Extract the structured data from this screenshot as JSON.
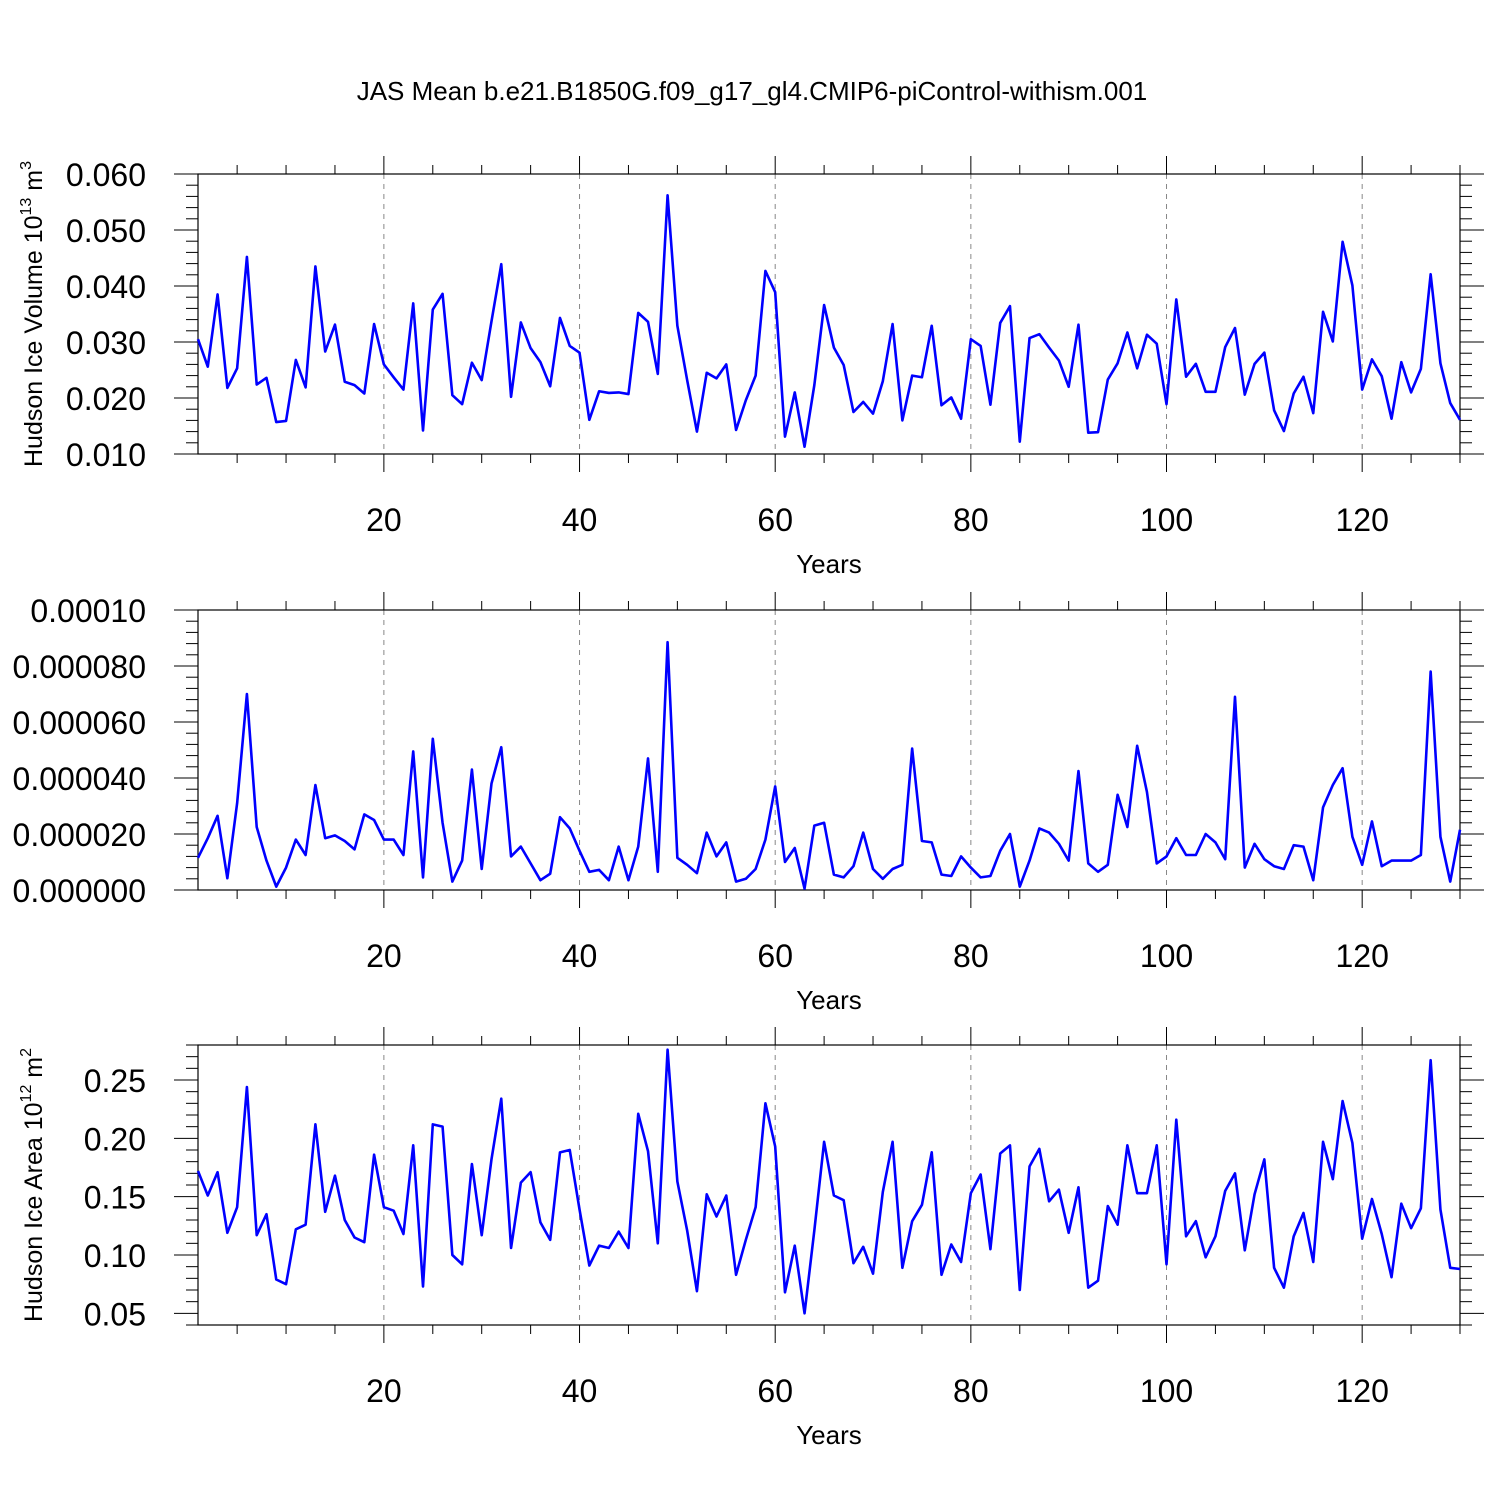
{
  "title": "JAS Mean b.e21.B1850G.f09_g17_gl4.CMIP6-piControl-withism.001",
  "colors": {
    "line": "#0000ff",
    "axis": "#000000",
    "grid": "#888888"
  },
  "chart_data": [
    {
      "type": "line",
      "ylabel": {
        "text": "Hudson Ice Volume 10",
        "exp": "13",
        "unit": " m",
        "unit_exp": "3"
      },
      "xlabel": "Years",
      "xlim": [
        1,
        130
      ],
      "ylim": [
        0.01,
        0.06
      ],
      "xticks": [
        "20",
        "40",
        "60",
        "80",
        "100",
        "120"
      ],
      "yticks": [
        "0.010",
        "0.020",
        "0.030",
        "0.040",
        "0.050",
        "0.060"
      ],
      "grid": "vertical dashed",
      "series": [
        {
          "values": [
            0.0305,
            0.0256,
            0.0385,
            0.0218,
            0.0253,
            0.0452,
            0.0224,
            0.0236,
            0.0157,
            0.0159,
            0.0268,
            0.0219,
            0.0435,
            0.0283,
            0.0331,
            0.0229,
            0.0223,
            0.0208,
            0.0332,
            0.026,
            0.0237,
            0.0215,
            0.0369,
            0.0142,
            0.0358,
            0.0386,
            0.0205,
            0.0189,
            0.0263,
            0.0232,
            0.0337,
            0.0439,
            0.0202,
            0.0335,
            0.0289,
            0.0264,
            0.0221,
            0.0343,
            0.0293,
            0.0281,
            0.0161,
            0.0212,
            0.0209,
            0.021,
            0.0207,
            0.0352,
            0.0336,
            0.0243,
            0.0562,
            0.0329,
            0.0232,
            0.014,
            0.0245,
            0.0235,
            0.026,
            0.0143,
            0.0196,
            0.024,
            0.0427,
            0.0389,
            0.0131,
            0.021,
            0.0113,
            0.0223,
            0.0366,
            0.029,
            0.0259,
            0.0175,
            0.0193,
            0.0172,
            0.023,
            0.0332,
            0.016,
            0.024,
            0.0237,
            0.0329,
            0.0187,
            0.0201,
            0.0163,
            0.0305,
            0.0293,
            0.0188,
            0.0334,
            0.0364,
            0.0122,
            0.0307,
            0.0314,
            0.029,
            0.0267,
            0.022,
            0.0331,
            0.0138,
            0.0139,
            0.0233,
            0.0262,
            0.0317,
            0.0253,
            0.0313,
            0.0297,
            0.0189,
            0.0376,
            0.0238,
            0.0261,
            0.0211,
            0.0211,
            0.0291,
            0.0325,
            0.0206,
            0.0261,
            0.0281,
            0.0178,
            0.0141,
            0.0208,
            0.0238,
            0.0173,
            0.0354,
            0.0301,
            0.0479,
            0.0401,
            0.0215,
            0.0269,
            0.0239,
            0.0163,
            0.0264,
            0.021,
            0.0252,
            0.0421,
            0.0262,
            0.0191,
            0.0161
          ]
        }
      ]
    },
    {
      "type": "line",
      "ylabel": null,
      "xlabel": "Years",
      "xlim": [
        1,
        130
      ],
      "ylim": [
        0.0,
        0.0001
      ],
      "xticks": [
        "20",
        "40",
        "60",
        "80",
        "100",
        "120"
      ],
      "yticks": [
        "0.000000",
        "0.000020",
        "0.000040",
        "0.000060",
        "0.000080",
        "0.00010"
      ],
      "grid": "vertical dashed",
      "series": [
        {
          "values": [
            1.15e-05,
            1.85e-05,
            2.65e-05,
            4.2e-06,
            3.1e-05,
            7e-05,
            2.25e-05,
            1.05e-05,
            1.2e-06,
            8e-06,
            1.8e-05,
            1.25e-05,
            3.75e-05,
            1.85e-05,
            1.95e-05,
            1.75e-05,
            1.45e-05,
            2.7e-05,
            2.5e-05,
            1.8e-05,
            1.8e-05,
            1.25e-05,
            4.95e-05,
            4.5e-06,
            5.4e-05,
            2.4e-05,
            3e-06,
            1.05e-05,
            4.3e-05,
            7.5e-06,
            3.8e-05,
            5.1e-05,
            1.2e-05,
            1.55e-05,
            9.5e-06,
            3.5e-06,
            5.8e-06,
            2.6e-05,
            2.2e-05,
            1.4e-05,
            6.5e-06,
            7.2e-06,
            3.5e-06,
            1.55e-05,
            3.5e-06,
            1.55e-05,
            4.7e-05,
            6.5e-06,
            8.85e-05,
            1.15e-05,
            9e-06,
            6e-06,
            2.05e-05,
            1.2e-05,
            1.7e-05,
            3e-06,
            4e-06,
            7.5e-06,
            1.8e-05,
            3.7e-05,
            1e-05,
            1.5e-05,
            5e-07,
            2.3e-05,
            2.4e-05,
            5.5e-06,
            4.5e-06,
            8.5e-06,
            2.05e-05,
            7.5e-06,
            4e-06,
            7.5e-06,
            9e-06,
            5.05e-05,
            1.75e-05,
            1.7e-05,
            5.5e-06,
            5e-06,
            1.2e-05,
            8e-06,
            4.5e-06,
            5e-06,
            1.4e-05,
            2e-05,
            1.2e-06,
            1.05e-05,
            2.2e-05,
            2.05e-05,
            1.65e-05,
            1.05e-05,
            4.25e-05,
            9.5e-06,
            6.5e-06,
            9e-06,
            3.4e-05,
            2.25e-05,
            5.15e-05,
            3.5e-05,
            9.5e-06,
            1.2e-05,
            1.85e-05,
            1.25e-05,
            1.25e-05,
            2e-05,
            1.7e-05,
            1.1e-05,
            6.9e-05,
            8e-06,
            1.65e-05,
            1.1e-05,
            8.5e-06,
            7.5e-06,
            1.6e-05,
            1.55e-05,
            3.5e-06,
            2.95e-05,
            3.75e-05,
            4.35e-05,
            1.9e-05,
            9e-06,
            2.45e-05,
            8.5e-06,
            1.05e-05,
            1.05e-05,
            1.05e-05,
            1.25e-05,
            7.8e-05,
            1.9e-05,
            3e-06,
            2.15e-05
          ]
        }
      ]
    },
    {
      "type": "line",
      "ylabel": {
        "text": "Hudson Ice Area 10",
        "exp": "12",
        "unit": " m",
        "unit_exp": "2"
      },
      "xlabel": "Years",
      "xlim": [
        1,
        130
      ],
      "ylim": [
        0.04,
        0.28
      ],
      "xticks": [
        "20",
        "40",
        "60",
        "80",
        "100",
        "120"
      ],
      "yticks": [
        "0.05",
        "0.10",
        "0.15",
        "0.20",
        "0.25"
      ],
      "grid": "vertical dashed",
      "series": [
        {
          "values": [
            0.172,
            0.151,
            0.171,
            0.119,
            0.141,
            0.244,
            0.117,
            0.135,
            0.079,
            0.075,
            0.122,
            0.126,
            0.212,
            0.137,
            0.168,
            0.13,
            0.115,
            0.111,
            0.186,
            0.141,
            0.138,
            0.118,
            0.194,
            0.073,
            0.212,
            0.21,
            0.1,
            0.092,
            0.178,
            0.117,
            0.182,
            0.234,
            0.106,
            0.162,
            0.171,
            0.128,
            0.113,
            0.188,
            0.19,
            0.139,
            0.091,
            0.108,
            0.106,
            0.12,
            0.106,
            0.221,
            0.189,
            0.11,
            0.276,
            0.163,
            0.121,
            0.069,
            0.152,
            0.133,
            0.151,
            0.083,
            0.113,
            0.141,
            0.23,
            0.193,
            0.068,
            0.108,
            0.05,
            0.121,
            0.197,
            0.151,
            0.147,
            0.093,
            0.107,
            0.084,
            0.154,
            0.197,
            0.089,
            0.129,
            0.143,
            0.188,
            0.083,
            0.109,
            0.094,
            0.153,
            0.169,
            0.105,
            0.187,
            0.194,
            0.07,
            0.176,
            0.191,
            0.146,
            0.156,
            0.119,
            0.158,
            0.072,
            0.078,
            0.142,
            0.126,
            0.194,
            0.153,
            0.153,
            0.194,
            0.092,
            0.216,
            0.116,
            0.129,
            0.098,
            0.116,
            0.155,
            0.17,
            0.104,
            0.152,
            0.182,
            0.089,
            0.072,
            0.116,
            0.136,
            0.094,
            0.197,
            0.165,
            0.232,
            0.196,
            0.114,
            0.148,
            0.118,
            0.081,
            0.144,
            0.123,
            0.14,
            0.267,
            0.139,
            0.089,
            0.088
          ]
        }
      ]
    }
  ]
}
